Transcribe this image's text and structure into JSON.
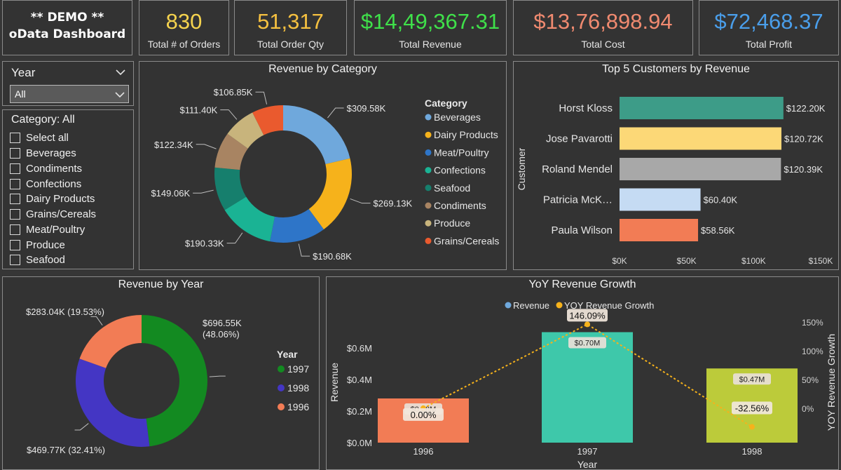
{
  "header": {
    "line1": "** DEMO **",
    "line2": "oData Dashboard"
  },
  "kpis": [
    {
      "value": "830",
      "label": "Total # of Orders",
      "color": "#f5d34e"
    },
    {
      "value": "51,317",
      "label": "Total Order Qty",
      "color": "#f5c040"
    },
    {
      "value": "$14,49,367.31",
      "label": "Total Revenue",
      "color": "#3fe04a"
    },
    {
      "value": "$13,76,898.94",
      "label": "Total Cost",
      "color": "#f08a70"
    },
    {
      "value": "$72,468.37",
      "label": "Total Profit",
      "color": "#4a9eea"
    }
  ],
  "year_slicer": {
    "label": "Year",
    "selected": "All"
  },
  "category_slicer": {
    "heading": "Category: All",
    "items": [
      "Select all",
      "Beverages",
      "Condiments",
      "Confections",
      "Dairy Products",
      "Grains/Cereals",
      "Meat/Poultry",
      "Produce",
      "Seafood"
    ]
  },
  "colors": {
    "Beverages": "#6fa8dc",
    "Dairy Products": "#f6b21b",
    "Meat/Poultry": "#2e75c8",
    "Confections": "#1ab394",
    "Seafood": "#167f6d",
    "Condiments": "#a88462",
    "Produce": "#c8b47c",
    "Grains/Cereals": "#ea5a2e"
  },
  "chart_data": [
    {
      "type": "pie",
      "title": "Revenue by Category",
      "legend_title": "Category",
      "slices": [
        {
          "label": "Beverages",
          "value": 309.58,
          "text": "$309.58K"
        },
        {
          "label": "Dairy Products",
          "value": 269.13,
          "text": "$269.13K"
        },
        {
          "label": "Meat/Poultry",
          "value": 190.68,
          "text": "$190.68K"
        },
        {
          "label": "Confections",
          "value": 190.33,
          "text": "$190.33K"
        },
        {
          "label": "Seafood",
          "value": 149.06,
          "text": "$149.06K"
        },
        {
          "label": "Condiments",
          "value": 122.34,
          "text": "$122.34K"
        },
        {
          "label": "Produce",
          "value": 111.4,
          "text": "$111.40K"
        },
        {
          "label": "Grains/Cereals",
          "value": 106.85,
          "text": "$106.85K"
        }
      ],
      "legend_placement": "right"
    },
    {
      "type": "bar",
      "title": "Top 5 Customers by Revenue",
      "ylabel": "Customer",
      "categories": [
        "Horst Kloss",
        "Jose Pavarotti",
        "Roland Mendel",
        "Patricia McK…",
        "Paula Wilson"
      ],
      "values": [
        122.2,
        120.72,
        120.39,
        60.4,
        58.56
      ],
      "value_labels": [
        "$122.20K",
        "$120.72K",
        "$120.39K",
        "$60.40K",
        "$58.56K"
      ],
      "bar_colors": [
        "#3d9c88",
        "#fcd877",
        "#a8a8a8",
        "#c5dbf3",
        "#f27c55"
      ],
      "xticks": [
        "$0K",
        "$50K",
        "$100K",
        "$150K"
      ],
      "xlim": [
        0,
        150
      ]
    },
    {
      "type": "pie",
      "title": "Revenue by Year",
      "legend_title": "Year",
      "slices": [
        {
          "label": "1997",
          "value": 696.55,
          "text1": "$696.55K",
          "text2": "(48.06%)",
          "color": "#138a21"
        },
        {
          "label": "1998",
          "value": 469.77,
          "text1": "$469.77K (32.41%)",
          "color": "#4436c4"
        },
        {
          "label": "1996",
          "value": 283.04,
          "text1": "$283.04K (19.53%)",
          "color": "#f27c55"
        }
      ],
      "legend_placement": "right"
    },
    {
      "type": "bar",
      "title": "YoY Revenue Growth",
      "legend": [
        "Revenue",
        "YOY Revenue Growth"
      ],
      "legend_colors": [
        "#6fa8dc",
        "#f6b21b"
      ],
      "xlabel": "Year",
      "ylabel": "Revenue",
      "y2label": "YOY Revenue Growth",
      "categories": [
        "1996",
        "1997",
        "1998"
      ],
      "values": [
        0.28,
        0.7,
        0.47
      ],
      "value_labels": [
        "$0.28M",
        "$0.70M",
        "$0.47M"
      ],
      "bar_colors": [
        "#f27c55",
        "#3ec8aa",
        "#bccb3a"
      ],
      "growth": [
        0.0,
        146.09,
        -32.56
      ],
      "growth_labels": [
        "0.00%",
        "146.09%",
        "-32.56%"
      ],
      "yticks": [
        "$0.0M",
        "$0.2M",
        "$0.4M",
        "$0.6M"
      ],
      "ylim": [
        0,
        0.8
      ],
      "y2ticks": [
        "0%",
        "50%",
        "100%",
        "150%"
      ],
      "y2lim": [
        -60,
        160
      ]
    }
  ]
}
